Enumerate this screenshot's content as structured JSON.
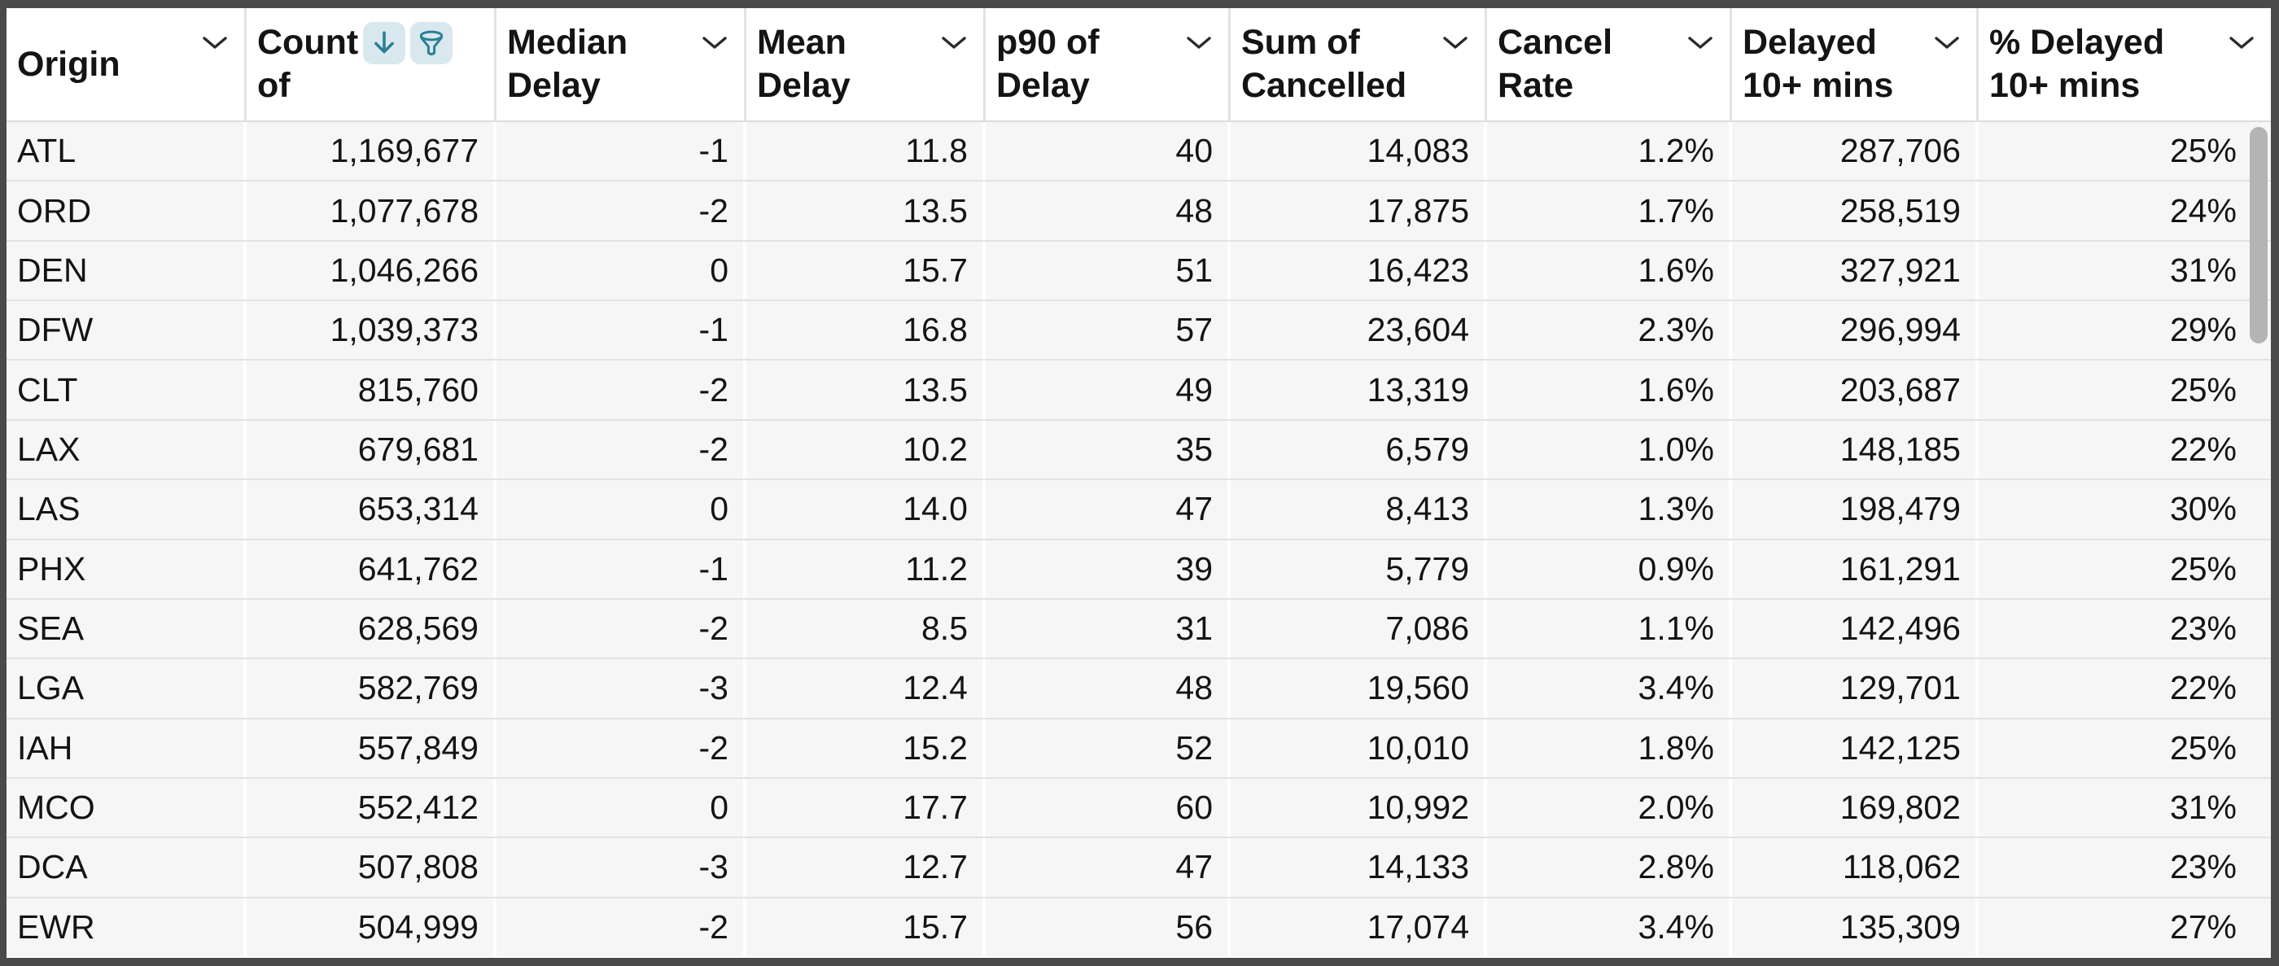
{
  "table": {
    "columns": [
      {
        "id": "origin",
        "label": "Origin",
        "line1": "Origin",
        "line2": "",
        "align": "left",
        "menu": true
      },
      {
        "id": "count-of",
        "label": "Count of",
        "line1": "Count",
        "line2": "of",
        "align": "right",
        "sorted": "descending",
        "filtered": true
      },
      {
        "id": "median-delay",
        "label": "Median Delay",
        "line1": "Median",
        "line2": "Delay",
        "align": "right",
        "menu": true
      },
      {
        "id": "mean-delay",
        "label": "Mean Delay",
        "line1": "Mean",
        "line2": "Delay",
        "align": "right",
        "menu": true
      },
      {
        "id": "p90-of-delay",
        "label": "p90 of Delay",
        "line1": "p90 of",
        "line2": "Delay",
        "align": "right",
        "menu": true
      },
      {
        "id": "sum-of-cancelled",
        "label": "Sum of Cancelled",
        "line1": "Sum of",
        "line2": "Cancelled",
        "align": "right",
        "menu": true
      },
      {
        "id": "cancel-rate",
        "label": "Cancel Rate",
        "line1": "Cancel",
        "line2": "Rate",
        "align": "right",
        "menu": true
      },
      {
        "id": "delayed-10-mins",
        "label": "Delayed 10+ mins",
        "line1": "Delayed",
        "line2": "10+ mins",
        "align": "right",
        "menu": true
      },
      {
        "id": "pct-delayed-10-mins",
        "label": "% Delayed 10+ mins",
        "line1": "% Delayed",
        "line2": "10+ mins",
        "align": "right",
        "menu": true
      }
    ],
    "rows": [
      [
        "ATL",
        "1,169,677",
        "-1",
        "11.8",
        "40",
        "14,083",
        "1.2%",
        "287,706",
        "25%"
      ],
      [
        "ORD",
        "1,077,678",
        "-2",
        "13.5",
        "48",
        "17,875",
        "1.7%",
        "258,519",
        "24%"
      ],
      [
        "DEN",
        "1,046,266",
        "0",
        "15.7",
        "51",
        "16,423",
        "1.6%",
        "327,921",
        "31%"
      ],
      [
        "DFW",
        "1,039,373",
        "-1",
        "16.8",
        "57",
        "23,604",
        "2.3%",
        "296,994",
        "29%"
      ],
      [
        "CLT",
        "815,760",
        "-2",
        "13.5",
        "49",
        "13,319",
        "1.6%",
        "203,687",
        "25%"
      ],
      [
        "LAX",
        "679,681",
        "-2",
        "10.2",
        "35",
        "6,579",
        "1.0%",
        "148,185",
        "22%"
      ],
      [
        "LAS",
        "653,314",
        "0",
        "14.0",
        "47",
        "8,413",
        "1.3%",
        "198,479",
        "30%"
      ],
      [
        "PHX",
        "641,762",
        "-1",
        "11.2",
        "39",
        "5,779",
        "0.9%",
        "161,291",
        "25%"
      ],
      [
        "SEA",
        "628,569",
        "-2",
        "8.5",
        "31",
        "7,086",
        "1.1%",
        "142,496",
        "23%"
      ],
      [
        "LGA",
        "582,769",
        "-3",
        "12.4",
        "48",
        "19,560",
        "3.4%",
        "129,701",
        "22%"
      ],
      [
        "IAH",
        "557,849",
        "-2",
        "15.2",
        "52",
        "10,010",
        "1.8%",
        "142,125",
        "25%"
      ],
      [
        "MCO",
        "552,412",
        "0",
        "17.7",
        "60",
        "10,992",
        "2.0%",
        "169,802",
        "31%"
      ],
      [
        "DCA",
        "507,808",
        "-3",
        "12.7",
        "47",
        "14,133",
        "2.8%",
        "118,062",
        "23%"
      ],
      [
        "EWR",
        "504,999",
        "-2",
        "15.7",
        "56",
        "17,074",
        "3.4%",
        "135,309",
        "27%"
      ]
    ]
  },
  "icons": {
    "column_menu": "chevron-down",
    "sort_descending": "down-arrow",
    "filter": "funnel"
  },
  "colors": {
    "outer_border": "#4a4a4a",
    "header_bg": "#ffffff",
    "row_bg": "#f6f6f6",
    "row_line": "#e2e2e2",
    "col_line_body": "#ffffff",
    "col_line_header": "#e2e2e2",
    "text": "#141414",
    "accent_teal": "#2b7f96",
    "accent_teal_bg": "#d8e8ee",
    "scrollbar_thumb": "#b4b4b4"
  }
}
